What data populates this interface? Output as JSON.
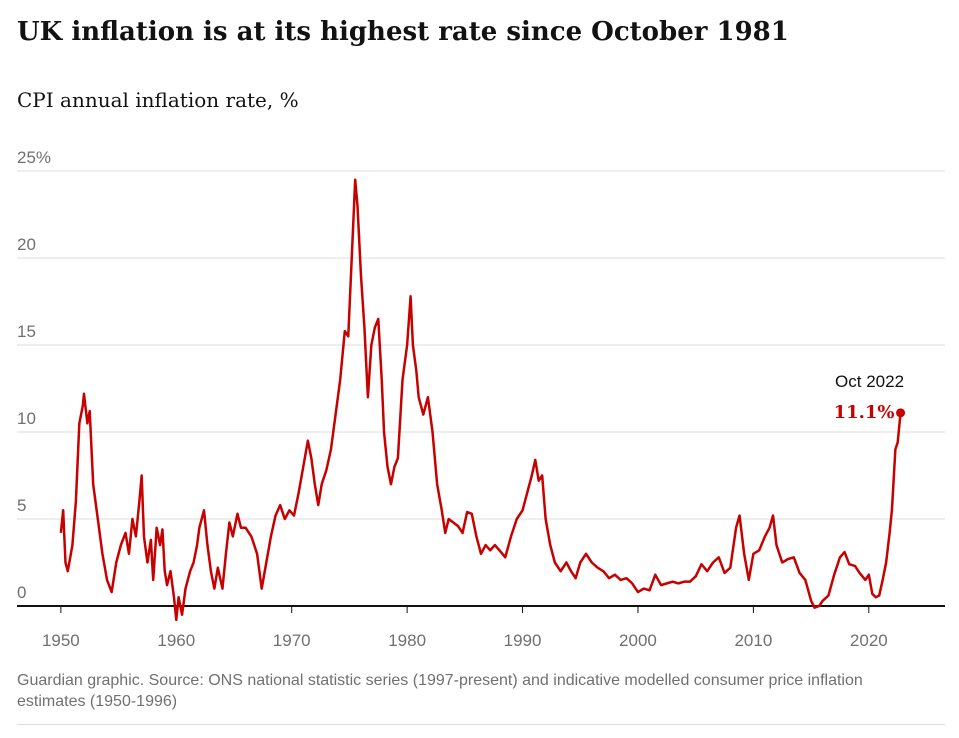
{
  "chart_data": {
    "type": "line",
    "title": "UK inflation is at its highest rate since October 1981",
    "subtitle": "CPI annual inflation rate, %",
    "source": "Guardian graphic. Source: ONS national statistic series (1997-present) and indicative modelled consumer price inflation estimates (1950-1996)",
    "color": "#c70000",
    "x": [
      1950.0,
      1950.2,
      1950.4,
      1950.6,
      1951.0,
      1951.3,
      1951.6,
      1951.9,
      1952.0,
      1952.3,
      1952.5,
      1952.8,
      1953.2,
      1953.6,
      1954.0,
      1954.4,
      1954.8,
      1955.2,
      1955.6,
      1955.9,
      1956.2,
      1956.5,
      1956.8,
      1957.0,
      1957.2,
      1957.5,
      1957.8,
      1958.0,
      1958.3,
      1958.6,
      1958.8,
      1959.0,
      1959.2,
      1959.5,
      1959.8,
      1960.0,
      1960.2,
      1960.5,
      1960.8,
      1961.2,
      1961.5,
      1961.8,
      1962.0,
      1962.4,
      1962.7,
      1963.0,
      1963.3,
      1963.6,
      1964.0,
      1964.3,
      1964.6,
      1964.9,
      1965.3,
      1965.6,
      1966.0,
      1966.5,
      1967.0,
      1967.4,
      1967.8,
      1968.2,
      1968.6,
      1969.0,
      1969.4,
      1969.8,
      1970.2,
      1970.6,
      1971.0,
      1971.4,
      1971.7,
      1972.0,
      1972.3,
      1972.6,
      1973.0,
      1973.4,
      1973.8,
      1974.2,
      1974.6,
      1974.9,
      1975.2,
      1975.5,
      1975.7,
      1976.0,
      1976.3,
      1976.6,
      1976.9,
      1977.2,
      1977.5,
      1977.8,
      1978.0,
      1978.3,
      1978.6,
      1978.9,
      1979.2,
      1979.6,
      1980.0,
      1980.3,
      1980.5,
      1980.8,
      1981.0,
      1981.4,
      1981.8,
      1982.2,
      1982.6,
      1983.0,
      1983.3,
      1983.6,
      1984.0,
      1984.4,
      1984.8,
      1985.2,
      1985.6,
      1986.0,
      1986.4,
      1986.8,
      1987.2,
      1987.6,
      1988.0,
      1988.5,
      1989.0,
      1989.5,
      1990.0,
      1990.4,
      1990.8,
      1991.1,
      1991.4,
      1991.7,
      1992.0,
      1992.4,
      1992.8,
      1993.3,
      1993.8,
      1994.2,
      1994.6,
      1995.0,
      1995.5,
      1996.0,
      1996.5,
      1997.0,
      1997.5,
      1998.0,
      1998.5,
      1999.0,
      1999.5,
      2000.0,
      2000.5,
      2001.0,
      2001.5,
      2002.0,
      2002.5,
      2003.0,
      2003.5,
      2004.0,
      2004.5,
      2005.0,
      2005.5,
      2006.0,
      2006.5,
      2007.0,
      2007.5,
      2008.0,
      2008.5,
      2008.8,
      2009.2,
      2009.6,
      2010.0,
      2010.5,
      2011.0,
      2011.4,
      2011.7,
      2012.0,
      2012.5,
      2013.0,
      2013.5,
      2014.0,
      2014.5,
      2015.0,
      2015.3,
      2015.7,
      2016.0,
      2016.5,
      2017.0,
      2017.5,
      2017.9,
      2018.3,
      2018.8,
      2019.2,
      2019.7,
      2020.0,
      2020.3,
      2020.6,
      2020.9,
      2021.2,
      2021.5,
      2021.8,
      2022.0,
      2022.3,
      2022.5,
      2022.75
    ],
    "values": [
      4.2,
      5.5,
      2.5,
      2.0,
      3.5,
      6,
      10.5,
      11.5,
      12.2,
      10.5,
      11.2,
      7,
      5,
      3,
      1.5,
      0.8,
      2.5,
      3.5,
      4.2,
      3,
      5,
      4,
      6,
      7.5,
      4,
      2.5,
      3.8,
      1.5,
      4.5,
      3.5,
      4.4,
      2,
      1.2,
      2,
      0.5,
      -0.8,
      0.5,
      -0.5,
      1,
      2,
      2.5,
      3.5,
      4.5,
      5.5,
      3.5,
      2,
      1,
      2.2,
      1,
      3,
      4.8,
      4,
      5.3,
      4.5,
      4.5,
      4,
      3,
      1,
      2.5,
      4,
      5.2,
      5.8,
      5,
      5.5,
      5.2,
      6.5,
      8,
      9.5,
      8.5,
      7,
      5.8,
      7,
      7.8,
      9,
      11,
      13,
      15.8,
      15.5,
      20,
      24.5,
      23,
      19,
      16,
      12,
      15,
      16,
      16.5,
      13,
      10,
      8,
      7,
      8,
      8.5,
      13,
      15,
      17.8,
      15,
      13.5,
      12,
      11,
      12,
      10,
      7,
      5.5,
      4.2,
      5,
      4.8,
      4.6,
      4.2,
      5.4,
      5.3,
      4,
      3,
      3.5,
      3.2,
      3.5,
      3.2,
      2.8,
      4,
      5,
      5.5,
      6.5,
      7.5,
      8.4,
      7.2,
      7.5,
      5,
      3.5,
      2.5,
      2,
      2.5,
      2,
      1.6,
      2.5,
      3,
      2.5,
      2.2,
      2,
      1.6,
      1.8,
      1.5,
      1.6,
      1.3,
      0.8,
      1,
      0.9,
      1.8,
      1.2,
      1.3,
      1.4,
      1.3,
      1.4,
      1.4,
      1.7,
      2.4,
      2,
      2.5,
      2.8,
      1.9,
      2.2,
      4.5,
      5.2,
      3,
      1.5,
      3,
      3.2,
      4,
      4.5,
      5.2,
      3.5,
      2.5,
      2.7,
      2.8,
      1.9,
      1.5,
      0.3,
      -0.1,
      0,
      0.3,
      0.6,
      1.8,
      2.8,
      3.1,
      2.4,
      2.3,
      1.9,
      1.5,
      1.8,
      0.7,
      0.5,
      0.6,
      1.5,
      2.5,
      4.2,
      5.5,
      9,
      9.4,
      11.1
    ],
    "annotation": {
      "text": "Oct 2022",
      "x": 2022.75,
      "value": 11.1,
      "value_label": "11.1%"
    },
    "xlim": [
      1946.2,
      2026.6
    ],
    "xticks": [
      1950,
      1960,
      1970,
      1980,
      1990,
      2000,
      2010,
      2020
    ],
    "ylim": [
      0,
      25
    ],
    "yticks": [
      0,
      5,
      10,
      15,
      20,
      {
        "value": 25,
        "label": "25%"
      }
    ],
    "grid": true
  }
}
